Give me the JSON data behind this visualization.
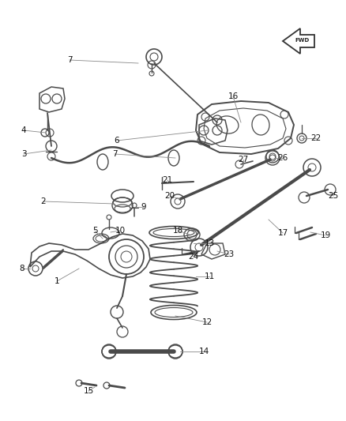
{
  "background_color": "#ffffff",
  "fig_width": 4.38,
  "fig_height": 5.33,
  "dpi": 100,
  "line_color": "#4a4a4a",
  "callout_color": "#888888",
  "label_fontsize": 7.5,
  "label_color": "#111111"
}
